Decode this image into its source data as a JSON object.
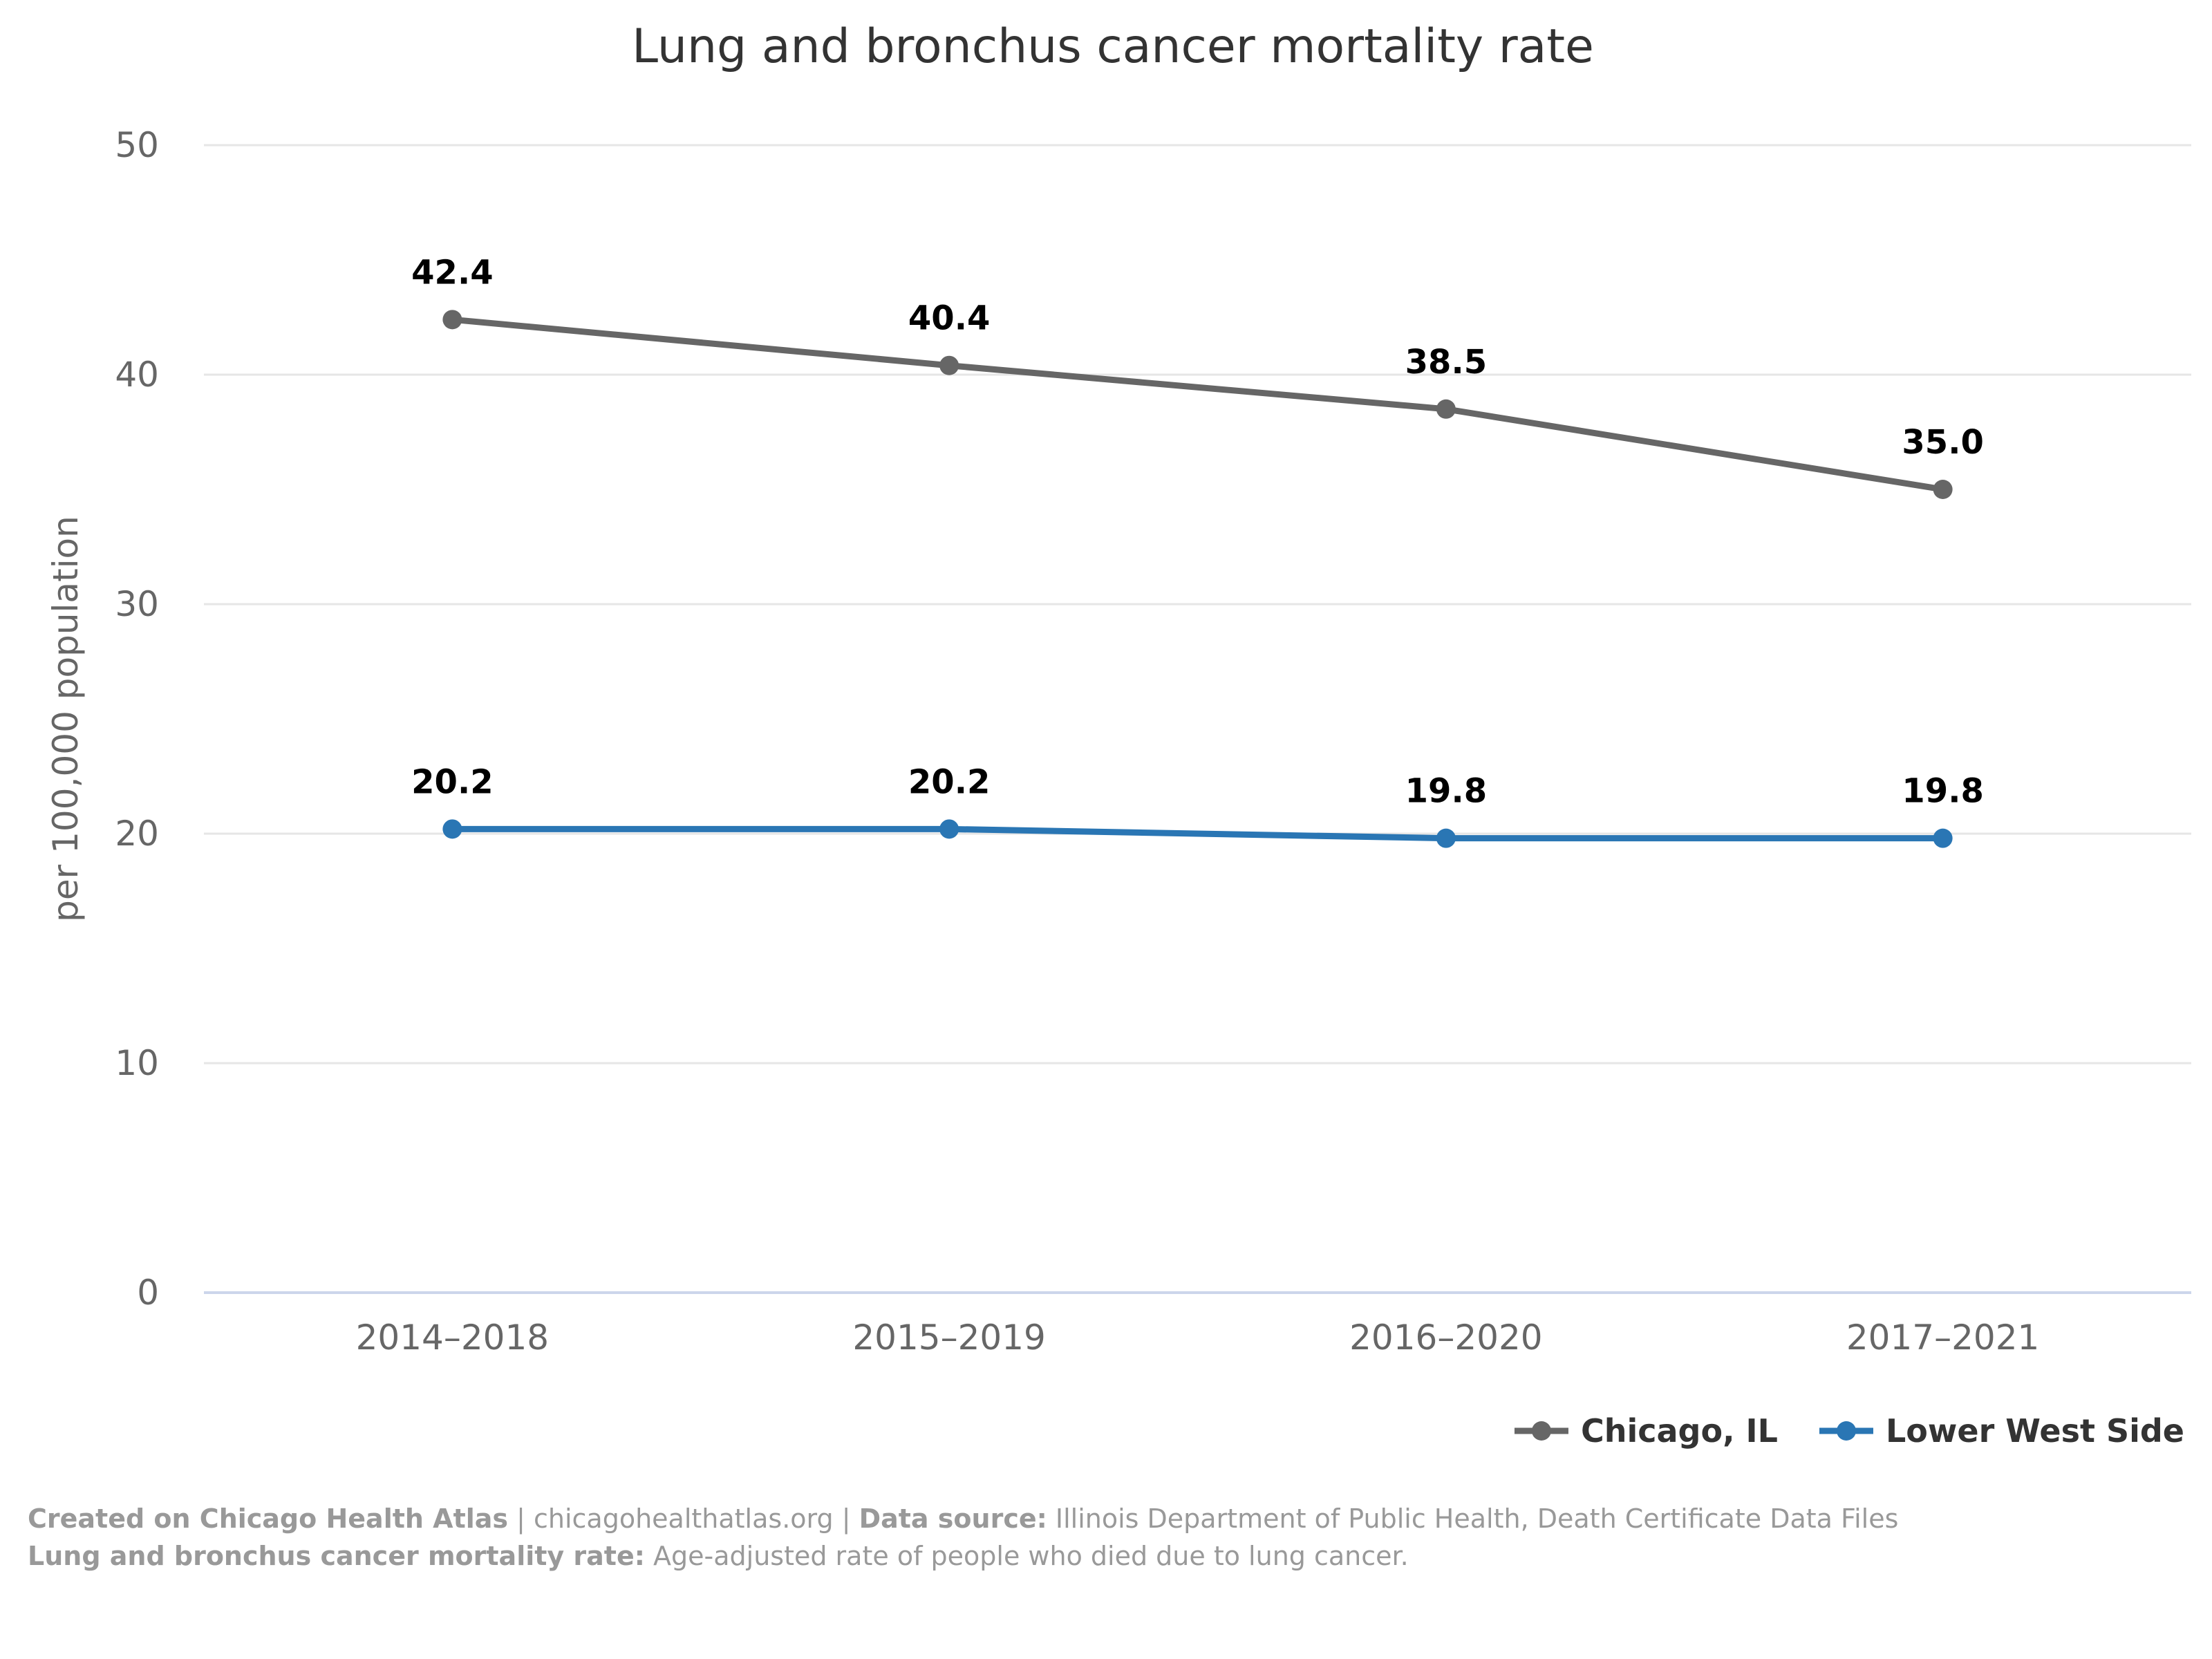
{
  "chart_data": {
    "type": "line",
    "title": "Lung and bronchus cancer mortality rate",
    "xlabel": "",
    "ylabel": "per 100,000 population",
    "categories": [
      "2014–2018",
      "2015–2019",
      "2016–2020",
      "2017–2021"
    ],
    "ylim": [
      0,
      50
    ],
    "yticks": [
      0,
      10,
      20,
      30,
      40,
      50
    ],
    "grid": true,
    "legend_position": "bottom-right",
    "series": [
      {
        "name": "Chicago, IL",
        "color": "#666666",
        "values": [
          42.4,
          40.4,
          38.5,
          35.0
        ],
        "labels": [
          "42.4",
          "40.4",
          "38.5",
          "35.0"
        ]
      },
      {
        "name": "Lower West Side",
        "color": "#2a76b4",
        "values": [
          20.2,
          20.2,
          19.8,
          19.8
        ],
        "labels": [
          "20.2",
          "20.2",
          "19.8",
          "19.8"
        ]
      }
    ]
  },
  "footer": {
    "line1_label": "Created on Chicago Health Atlas",
    "line1_sep1": " | ",
    "line1_url": "chicagohealthatlas.org",
    "line1_sep2": " | ",
    "line1_source_label": "Data source:",
    "line1_source": " Illinois Department of Public Health, Death Certificate Data Files",
    "line2_label": "Lung and bronchus cancer mortality rate:",
    "line2_text": " Age-adjusted rate of people who died due to lung cancer."
  }
}
